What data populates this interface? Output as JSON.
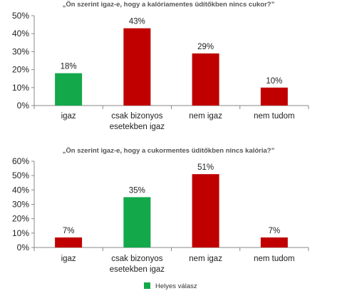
{
  "chart_data": [
    {
      "type": "bar",
      "title": "„Ön szerint igaz-e, hogy a kalóriamentes üdítőkben nincs cukor?”",
      "categories": [
        [
          "igaz"
        ],
        [
          "csak bizonyos",
          "esetekben igaz"
        ],
        [
          "nem igaz"
        ],
        [
          "nem tudom"
        ]
      ],
      "values": [
        18,
        43,
        29,
        10
      ],
      "value_labels": [
        "18%",
        "43%",
        "29%",
        "10%"
      ],
      "bar_colors": [
        "#13a84a",
        "#c00000",
        "#c00000",
        "#c00000"
      ],
      "ylim": [
        0,
        50
      ],
      "yticks": [
        0,
        10,
        20,
        30,
        40,
        50
      ],
      "ytick_labels": [
        "0%",
        "10%",
        "20%",
        "30%",
        "40%",
        "50%"
      ],
      "grid": false
    },
    {
      "type": "bar",
      "title": "„Ön szerint igaz-e, hogy a cukormentes üdítőkben nincs kalória?”",
      "categories": [
        [
          "igaz"
        ],
        [
          "csak bizonyos",
          "esetekben igaz"
        ],
        [
          "nem igaz"
        ],
        [
          "nem tudom"
        ]
      ],
      "values": [
        7,
        35,
        51,
        7
      ],
      "value_labels": [
        "7%",
        "35%",
        "51%",
        "7%"
      ],
      "bar_colors": [
        "#c00000",
        "#13a84a",
        "#c00000",
        "#c00000"
      ],
      "ylim": [
        0,
        60
      ],
      "yticks": [
        0,
        10,
        20,
        30,
        40,
        50,
        60
      ],
      "ytick_labels": [
        "0%",
        "10%",
        "20%",
        "30%",
        "40%",
        "50%",
        "60%"
      ],
      "grid": false
    }
  ],
  "legend": {
    "label": "Helyes válasz",
    "color": "#13a84a",
    "position": "bottom-center"
  }
}
